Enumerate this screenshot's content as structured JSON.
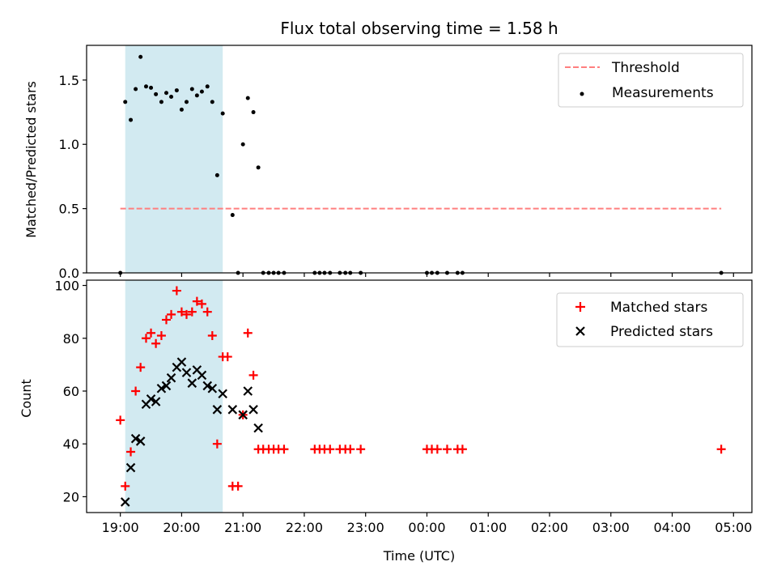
{
  "chart_data": [
    {
      "type": "scatter",
      "title": "Flux total observing time = 1.58 h",
      "xlabel": "",
      "ylabel": "Matched/Predicted stars",
      "xlim": [
        18.45,
        29.3
      ],
      "ylim": [
        0,
        1.77
      ],
      "yticks": [
        0.0,
        0.5,
        1.0,
        1.5
      ],
      "ytick_labels": [
        "0.0",
        "0.5",
        "1.0",
        "1.5"
      ],
      "shaded_span": [
        19.08,
        20.67
      ],
      "shade_color": "#add8e6",
      "threshold": {
        "name": "Threshold",
        "value": 0.5,
        "x_range": [
          19.0,
          28.8
        ],
        "color": "#ff7f7f"
      },
      "legend": [
        "Threshold",
        "Measurements"
      ],
      "legend_position": "top-right",
      "series": [
        {
          "name": "Measurements",
          "color": "#000000",
          "x": [
            19.0,
            19.08,
            19.17,
            19.25,
            19.33,
            19.42,
            19.5,
            19.58,
            19.67,
            19.75,
            19.83,
            19.92,
            20.0,
            20.08,
            20.17,
            20.25,
            20.33,
            20.42,
            20.5,
            20.58,
            20.67,
            20.83,
            20.92,
            21.0,
            21.08,
            21.17,
            21.25,
            21.33,
            21.42,
            21.5,
            21.58,
            21.67,
            22.17,
            22.25,
            22.33,
            22.42,
            22.58,
            22.67,
            22.75,
            22.92,
            24.0,
            24.08,
            24.17,
            24.33,
            24.5,
            24.58,
            28.8
          ],
          "y": [
            0.0,
            1.33,
            1.19,
            1.43,
            1.68,
            1.45,
            1.44,
            1.39,
            1.33,
            1.4,
            1.37,
            1.42,
            1.27,
            1.33,
            1.43,
            1.38,
            1.41,
            1.45,
            1.33,
            0.76,
            1.24,
            0.45,
            0.0,
            1.0,
            1.36,
            1.25,
            0.82,
            0.0,
            0.0,
            0.0,
            0.0,
            0.0,
            0.0,
            0.0,
            0.0,
            0.0,
            0.0,
            0.0,
            0.0,
            0.0,
            0.0,
            0.0,
            0.0,
            0.0,
            0.0,
            0.0,
            0.0
          ]
        }
      ]
    },
    {
      "type": "scatter",
      "title": "",
      "xlabel": "Time (UTC)",
      "ylabel": "Count",
      "xlim": [
        18.45,
        29.3
      ],
      "ylim": [
        14,
        102
      ],
      "yticks": [
        20,
        40,
        60,
        80,
        100
      ],
      "ytick_labels": [
        "20",
        "40",
        "60",
        "80",
        "100"
      ],
      "xticks": [
        19,
        20,
        21,
        22,
        23,
        24,
        25,
        26,
        27,
        28,
        29
      ],
      "xtick_labels": [
        "19:00",
        "20:00",
        "21:00",
        "22:00",
        "23:00",
        "00:00",
        "01:00",
        "02:00",
        "03:00",
        "04:00",
        "05:00"
      ],
      "shaded_span": [
        19.08,
        20.67
      ],
      "shade_color": "#add8e6",
      "legend": [
        "Matched stars",
        "Predicted stars"
      ],
      "legend_position": "top-right",
      "series": [
        {
          "name": "Matched stars",
          "marker": "+",
          "color": "#ff0000",
          "x": [
            19.0,
            19.08,
            19.17,
            19.25,
            19.33,
            19.42,
            19.5,
            19.58,
            19.67,
            19.75,
            19.83,
            19.92,
            20.0,
            20.08,
            20.17,
            20.25,
            20.33,
            20.42,
            20.5,
            20.58,
            20.67,
            20.75,
            20.83,
            20.92,
            21.0,
            21.08,
            21.17,
            21.25,
            21.33,
            21.42,
            21.5,
            21.58,
            21.67,
            22.17,
            22.25,
            22.33,
            22.42,
            22.58,
            22.67,
            22.75,
            22.92,
            24.0,
            24.08,
            24.17,
            24.33,
            24.5,
            24.58,
            28.8
          ],
          "y": [
            49,
            24,
            37,
            60,
            69,
            80,
            82,
            78,
            81,
            87,
            89,
            98,
            90,
            89,
            90,
            94,
            93,
            90,
            81,
            40,
            73,
            73,
            24,
            24,
            51,
            82,
            66,
            38,
            38,
            38,
            38,
            38,
            38,
            38,
            38,
            38,
            38,
            38,
            38,
            38,
            38,
            38,
            38,
            38,
            38,
            38,
            38,
            38
          ]
        },
        {
          "name": "Predicted stars",
          "marker": "x",
          "color": "#000000",
          "x": [
            19.08,
            19.17,
            19.25,
            19.33,
            19.42,
            19.5,
            19.58,
            19.67,
            19.75,
            19.83,
            19.92,
            20.0,
            20.08,
            20.17,
            20.25,
            20.33,
            20.42,
            20.5,
            20.58,
            20.67,
            20.83,
            21.0,
            21.08,
            21.17,
            21.25
          ],
          "y": [
            18,
            31,
            42,
            41,
            55,
            57,
            56,
            61,
            62,
            65,
            69,
            71,
            67,
            63,
            68,
            66,
            62,
            61,
            53,
            59,
            53,
            51,
            60,
            53,
            46
          ]
        }
      ]
    }
  ]
}
